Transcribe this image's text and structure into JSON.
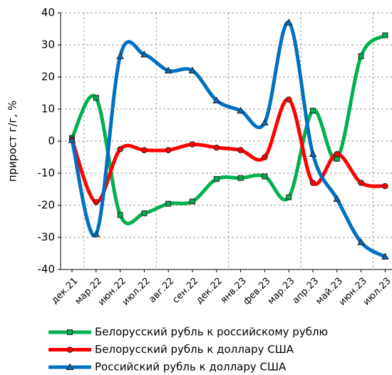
{
  "chart_data": {
    "type": "line",
    "y_label": "прирост  г/г, %",
    "categories": [
      "дек.21",
      "мар.22",
      "июн.22",
      "июл.22",
      "авг.22",
      "сен.22",
      "дек.22",
      "янв.23",
      "фев.23",
      "мар.23",
      "апр.23",
      "май.23",
      "июн.23",
      "июл.23"
    ],
    "series": [
      {
        "name": "Белорусский рубль к российскому рублю",
        "color": "#00b050",
        "marker": "square",
        "values": [
          1,
          13.5,
          -23,
          -22.5,
          -19.5,
          -18.8,
          -11.8,
          -11.5,
          -11,
          -17.5,
          9.5,
          -5.5,
          26.5,
          33
        ]
      },
      {
        "name": "Белорусский рубль к доллару США",
        "color": "#ff0000",
        "marker": "circle",
        "values": [
          0.5,
          -19,
          -2.5,
          -2.8,
          -2.8,
          -1,
          -2,
          -2.8,
          -5,
          13,
          -13,
          -4,
          -13,
          -14
        ]
      },
      {
        "name": "Российский рубль к доллару США",
        "color": "#0070c0",
        "marker": "triangle",
        "values": [
          0.3,
          -29,
          26.5,
          27,
          22,
          22,
          12.7,
          9.5,
          5.8,
          37,
          -4,
          -18,
          -31.5,
          -36
        ]
      }
    ],
    "ylim": [
      -40,
      40
    ],
    "yticks": [
      -40,
      -30,
      -20,
      -10,
      0,
      10,
      20,
      30,
      40
    ],
    "grid": true
  }
}
